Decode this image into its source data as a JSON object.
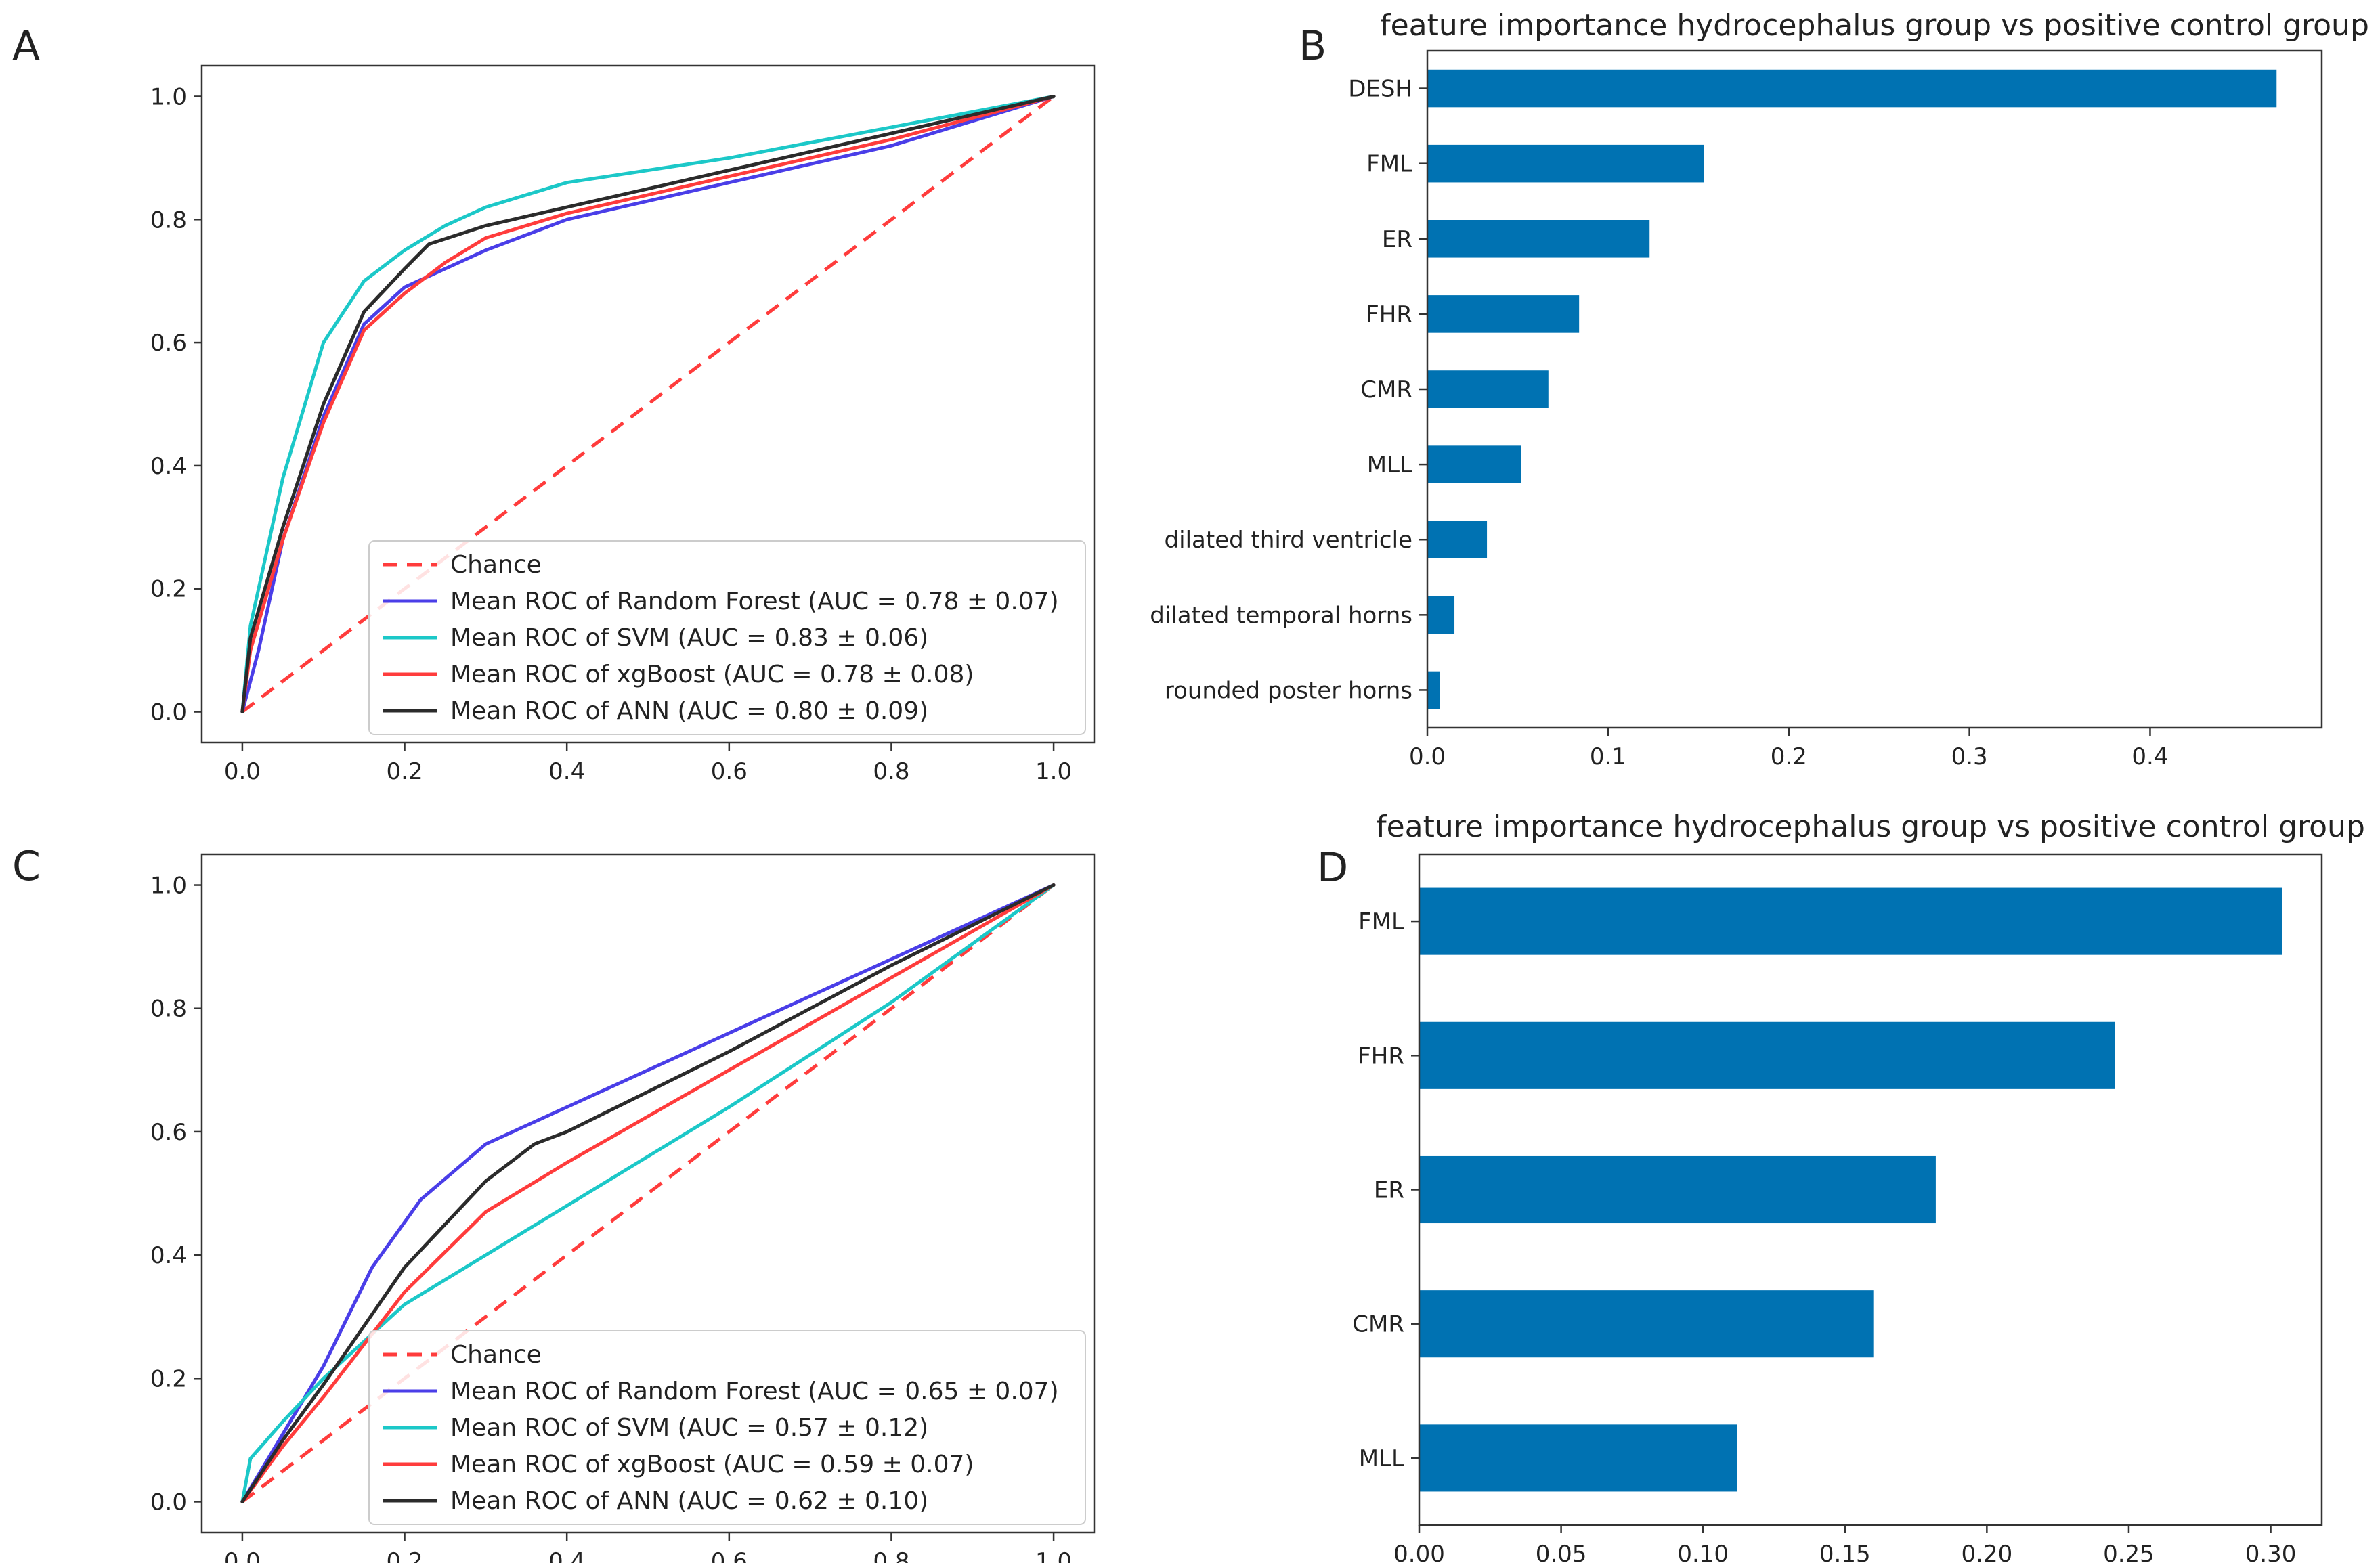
{
  "colors": {
    "random_forest": "#4a3ee8",
    "svm": "#1cc8c8",
    "xgboost": "#ff3c3c",
    "ann": "#2b2b2b",
    "chance": "#ff3c3c",
    "bar": "#0072b2"
  },
  "chart_data": [
    {
      "panel_label": "A",
      "type": "line",
      "title": "",
      "xlabel": "",
      "ylabel": "",
      "xlim": [
        -0.05,
        1.05
      ],
      "ylim": [
        -0.05,
        1.05
      ],
      "xticks": [
        "0.0",
        "0.2",
        "0.4",
        "0.6",
        "0.8",
        "1.0"
      ],
      "yticks": [
        "0.0",
        "0.2",
        "0.4",
        "0.6",
        "0.8",
        "1.0"
      ],
      "legend_position": "lower-right",
      "series": [
        {
          "key": "chance",
          "name": "Chance",
          "dashed": true,
          "x": [
            0,
            1
          ],
          "y": [
            0,
            1
          ]
        },
        {
          "key": "random_forest",
          "name": "Mean ROC of Random Forest (AUC = 0.78 ± 0.07)",
          "x": [
            0,
            0.02,
            0.05,
            0.1,
            0.15,
            0.2,
            0.25,
            0.3,
            0.4,
            0.6,
            0.8,
            1.0
          ],
          "y": [
            0,
            0.1,
            0.28,
            0.48,
            0.63,
            0.69,
            0.72,
            0.75,
            0.8,
            0.86,
            0.92,
            1.0
          ]
        },
        {
          "key": "svm",
          "name": "Mean ROC of SVM (AUC = 0.83 ± 0.06)",
          "x": [
            0,
            0.01,
            0.05,
            0.1,
            0.15,
            0.2,
            0.25,
            0.3,
            0.4,
            0.6,
            0.8,
            1.0
          ],
          "y": [
            0,
            0.14,
            0.38,
            0.6,
            0.7,
            0.75,
            0.79,
            0.82,
            0.86,
            0.9,
            0.95,
            1.0
          ]
        },
        {
          "key": "xgboost",
          "name": "Mean ROC of xgBoost (AUC = 0.78 ± 0.08)",
          "x": [
            0,
            0.01,
            0.05,
            0.1,
            0.15,
            0.2,
            0.25,
            0.3,
            0.4,
            0.6,
            0.8,
            1.0
          ],
          "y": [
            0,
            0.1,
            0.28,
            0.47,
            0.62,
            0.68,
            0.73,
            0.77,
            0.81,
            0.87,
            0.93,
            1.0
          ]
        },
        {
          "key": "ann",
          "name": "Mean ROC of ANN (AUC = 0.80 ± 0.09)",
          "x": [
            0,
            0.01,
            0.05,
            0.1,
            0.15,
            0.2,
            0.23,
            0.3,
            0.4,
            0.6,
            0.8,
            1.0
          ],
          "y": [
            0,
            0.12,
            0.3,
            0.5,
            0.65,
            0.72,
            0.76,
            0.79,
            0.82,
            0.88,
            0.94,
            1.0
          ]
        }
      ]
    },
    {
      "panel_label": "B",
      "type": "bar",
      "orientation": "horizontal",
      "title": "feature importance hydrocephalus group vs positive control group",
      "xlabel": "",
      "ylabel": "",
      "xlim": [
        0,
        0.495
      ],
      "xticks": [
        "0.0",
        "0.1",
        "0.2",
        "0.3",
        "0.4"
      ],
      "categories": [
        "DESH",
        "FML",
        "ER",
        "FHR",
        "CMR",
        "MLL",
        "dilated third ventricle",
        "dilated temporal horns",
        "rounded poster horns"
      ],
      "values": [
        0.47,
        0.153,
        0.123,
        0.084,
        0.067,
        0.052,
        0.033,
        0.015,
        0.007
      ]
    },
    {
      "panel_label": "C",
      "type": "line",
      "title": "",
      "xlabel": "",
      "ylabel": "",
      "xlim": [
        -0.05,
        1.05
      ],
      "ylim": [
        -0.05,
        1.05
      ],
      "xticks": [
        "0.0",
        "0.2",
        "0.4",
        "0.6",
        "0.8",
        "1.0"
      ],
      "yticks": [
        "0.0",
        "0.2",
        "0.4",
        "0.6",
        "0.8",
        "1.0"
      ],
      "legend_position": "lower-right",
      "series": [
        {
          "key": "chance",
          "name": "Chance",
          "dashed": true,
          "x": [
            0,
            1
          ],
          "y": [
            0,
            1
          ]
        },
        {
          "key": "random_forest",
          "name": "Mean ROC of Random Forest (AUC = 0.65 ± 0.07)",
          "x": [
            0,
            0.05,
            0.1,
            0.16,
            0.22,
            0.3,
            0.4,
            0.6,
            0.8,
            1.0
          ],
          "y": [
            0,
            0.11,
            0.22,
            0.38,
            0.49,
            0.58,
            0.64,
            0.76,
            0.88,
            1.0
          ]
        },
        {
          "key": "svm",
          "name": "Mean ROC of SVM (AUC = 0.57 ± 0.12)",
          "x": [
            0,
            0.01,
            0.05,
            0.1,
            0.2,
            0.3,
            0.4,
            0.6,
            0.8,
            1.0
          ],
          "y": [
            0,
            0.07,
            0.13,
            0.2,
            0.32,
            0.4,
            0.48,
            0.64,
            0.81,
            1.0
          ]
        },
        {
          "key": "xgboost",
          "name": "Mean ROC of xgBoost (AUC = 0.59 ± 0.07)",
          "x": [
            0,
            0.05,
            0.1,
            0.2,
            0.3,
            0.4,
            0.6,
            0.8,
            1.0
          ],
          "y": [
            0,
            0.09,
            0.17,
            0.34,
            0.47,
            0.55,
            0.7,
            0.85,
            1.0
          ]
        },
        {
          "key": "ann",
          "name": "Mean ROC of ANN (AUC = 0.62 ± 0.10)",
          "x": [
            0,
            0.05,
            0.1,
            0.2,
            0.3,
            0.36,
            0.4,
            0.6,
            0.8,
            1.0
          ],
          "y": [
            0,
            0.1,
            0.19,
            0.38,
            0.52,
            0.58,
            0.6,
            0.73,
            0.87,
            1.0
          ]
        }
      ]
    },
    {
      "panel_label": "D",
      "type": "bar",
      "orientation": "horizontal",
      "title": "feature importance hydrocephalus group vs positive control group",
      "xlabel": "",
      "ylabel": "",
      "xlim": [
        0,
        0.318
      ],
      "xticks": [
        "0.00",
        "0.05",
        "0.10",
        "0.15",
        "0.20",
        "0.25",
        "0.30"
      ],
      "categories": [
        "FML",
        "FHR",
        "ER",
        "CMR",
        "MLL"
      ],
      "values": [
        0.304,
        0.245,
        0.182,
        0.16,
        0.112
      ]
    }
  ]
}
